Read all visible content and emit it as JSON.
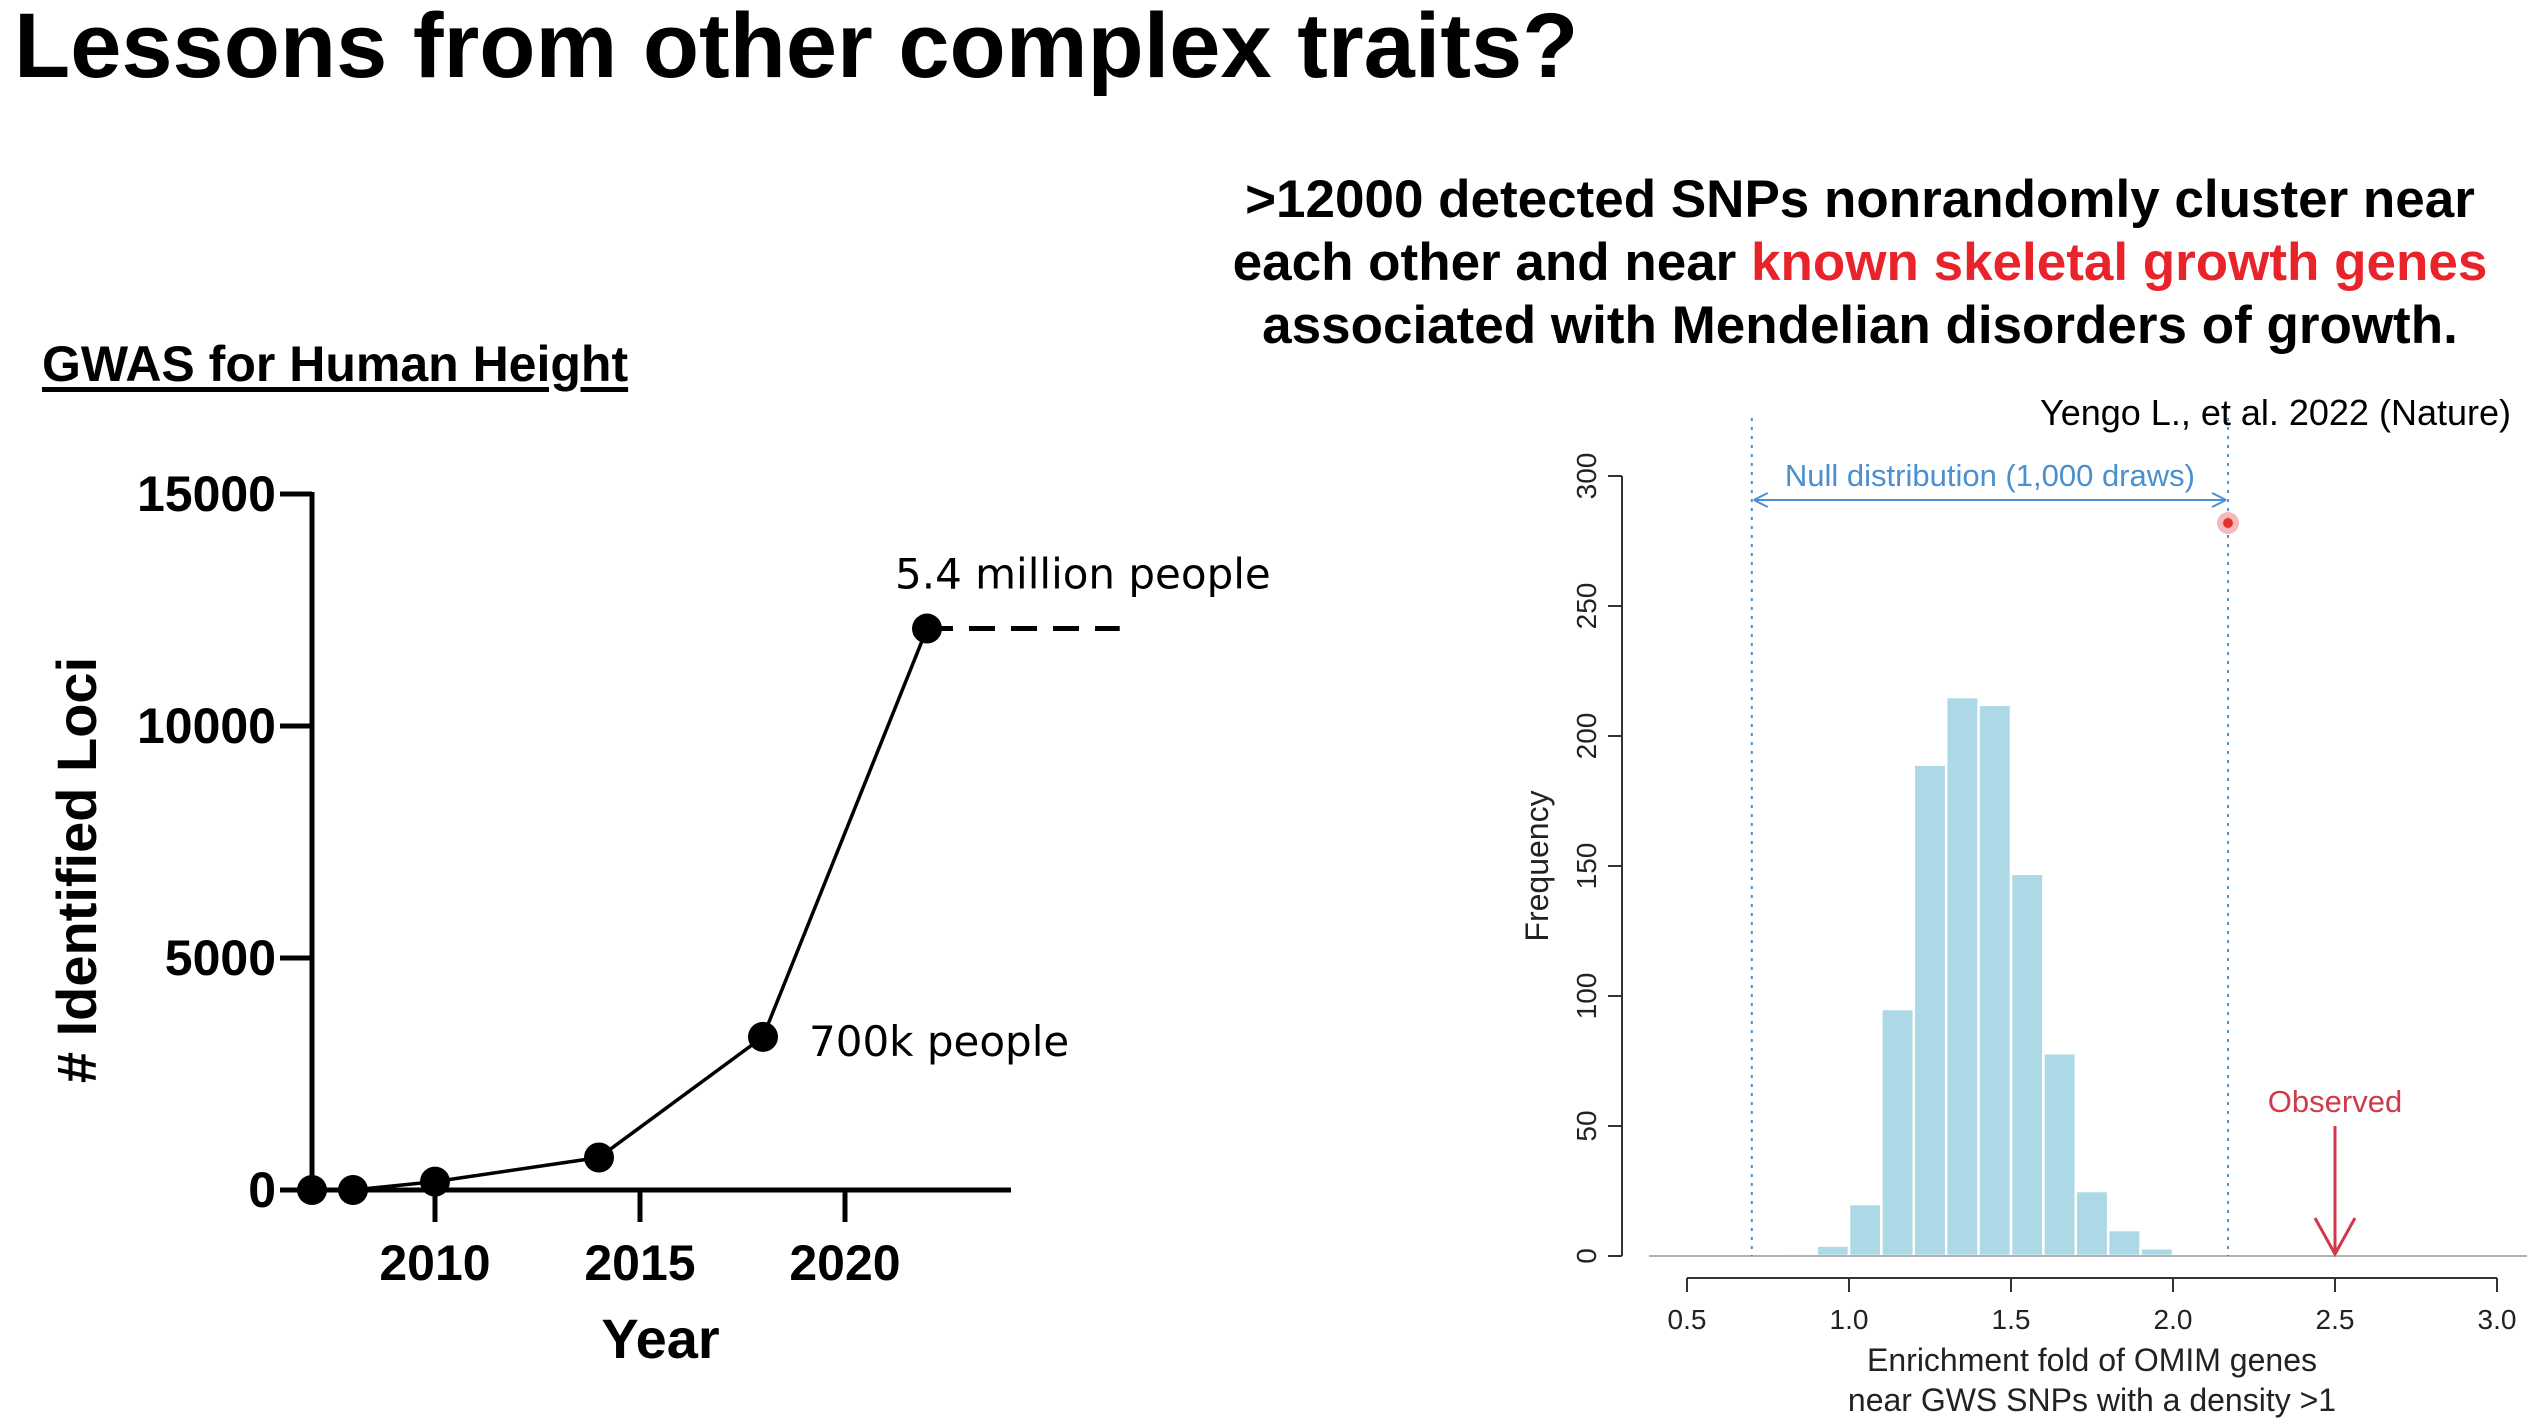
{
  "slide": {
    "title": "Lessons from other complex traits?",
    "headline": {
      "line1": ">12000 detected SNPs nonrandomly cluster near",
      "line2_pre": "each other and near ",
      "line2_highlight": "known skeletal growth genes",
      "line3": "associated with Mendelian disorders of growth.",
      "highlight_color": "#e8232a"
    },
    "citation": "Yengo L., et al. 2022 (Nature)"
  },
  "chart_data": [
    {
      "type": "line",
      "title": "GWAS for Human Height",
      "xlabel": "Year",
      "ylabel": "# Identified Loci",
      "xlim": [
        2007,
        2024
      ],
      "ylim": [
        0,
        15000
      ],
      "xticks": [
        2010,
        2015,
        2020
      ],
      "yticks": [
        0,
        5000,
        10000,
        15000
      ],
      "grid": false,
      "x": [
        2007,
        2008,
        2010,
        2014,
        2018,
        2022
      ],
      "y": [
        0,
        0,
        180,
        700,
        3300,
        12100
      ],
      "projection": {
        "style": "dashed",
        "from_x": 2022,
        "to_x": 2026.7,
        "y": 12100
      },
      "annotations": [
        {
          "text": "5.4 million people",
          "x": 2022,
          "y": 12100
        },
        {
          "text": "700k people",
          "x": 2018,
          "y": 3300
        }
      ]
    },
    {
      "type": "bar",
      "subtype": "histogram",
      "xlabel_line1": "Enrichment fold of OMIM genes",
      "xlabel_line2": "near GWS SNPs with a density >1",
      "ylabel": "Frequency",
      "xlim": [
        0.5,
        3.0
      ],
      "ylim": [
        0,
        300
      ],
      "xticks": [
        0.5,
        1.0,
        1.5,
        2.0,
        2.5,
        3.0
      ],
      "yticks": [
        0,
        50,
        100,
        150,
        200,
        250,
        300
      ],
      "bar_color": "#add8e6",
      "bin_width": 0.1,
      "bins_start": [
        0.8,
        0.9,
        1.0,
        1.1,
        1.2,
        1.3,
        1.4,
        1.5,
        1.6,
        1.7,
        1.8,
        1.9
      ],
      "values": [
        1,
        4,
        20,
        95,
        189,
        215,
        212,
        147,
        78,
        25,
        10,
        3
      ],
      "null_range": {
        "label": "Null distribution (1,000 draws)",
        "from": 0.7,
        "to": 2.17,
        "color": "#4a8fd0"
      },
      "observed": {
        "label": "Observed",
        "x": 2.5,
        "color": "#d0394a"
      }
    }
  ]
}
